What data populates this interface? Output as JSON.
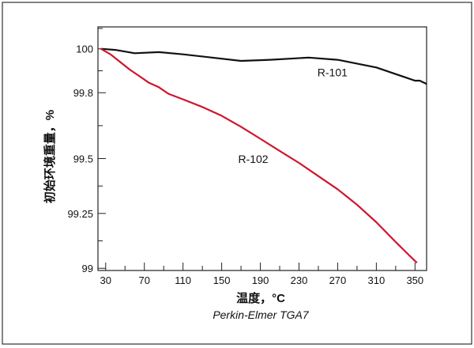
{
  "chart_data": {
    "type": "line",
    "title": "",
    "xlabel": "温度，°C",
    "ylabel": "初始环境重量，%",
    "caption": "Perkin-Elmer TGA7",
    "xlim": [
      22,
      362
    ],
    "ylim": [
      98.99,
      100.1
    ],
    "x_ticks": [
      30,
      70,
      110,
      150,
      190,
      230,
      270,
      310,
      350
    ],
    "x_minor_ticks": [
      50,
      90,
      130,
      170,
      210,
      250,
      290,
      330
    ],
    "y_ticks": [
      99,
      99.25,
      99.5,
      99.8,
      100
    ],
    "y_tick_labels": [
      "99",
      "99.25",
      "99.5",
      "99.8",
      "100"
    ],
    "grid": false,
    "series": [
      {
        "name": "R-101",
        "color": "#111111",
        "x": [
          25,
          40,
          60,
          85,
          110,
          140,
          170,
          200,
          240,
          270,
          310,
          340,
          350,
          355,
          362
        ],
        "y": [
          100.0,
          99.995,
          99.98,
          99.985,
          99.975,
          99.96,
          99.945,
          99.95,
          99.96,
          99.95,
          99.915,
          99.87,
          99.855,
          99.855,
          99.84
        ]
      },
      {
        "name": "R-102",
        "color": "#d0142c",
        "x": [
          25,
          35,
          45,
          55,
          65,
          75,
          85,
          95,
          110,
          130,
          150,
          170,
          190,
          210,
          230,
          250,
          270,
          290,
          310,
          330,
          345,
          352
        ],
        "y": [
          100.0,
          99.975,
          99.94,
          99.905,
          99.875,
          99.845,
          99.825,
          99.795,
          99.77,
          99.735,
          99.695,
          99.645,
          99.59,
          99.535,
          99.48,
          99.42,
          99.36,
          99.29,
          99.21,
          99.12,
          99.055,
          99.025
        ]
      }
    ]
  }
}
